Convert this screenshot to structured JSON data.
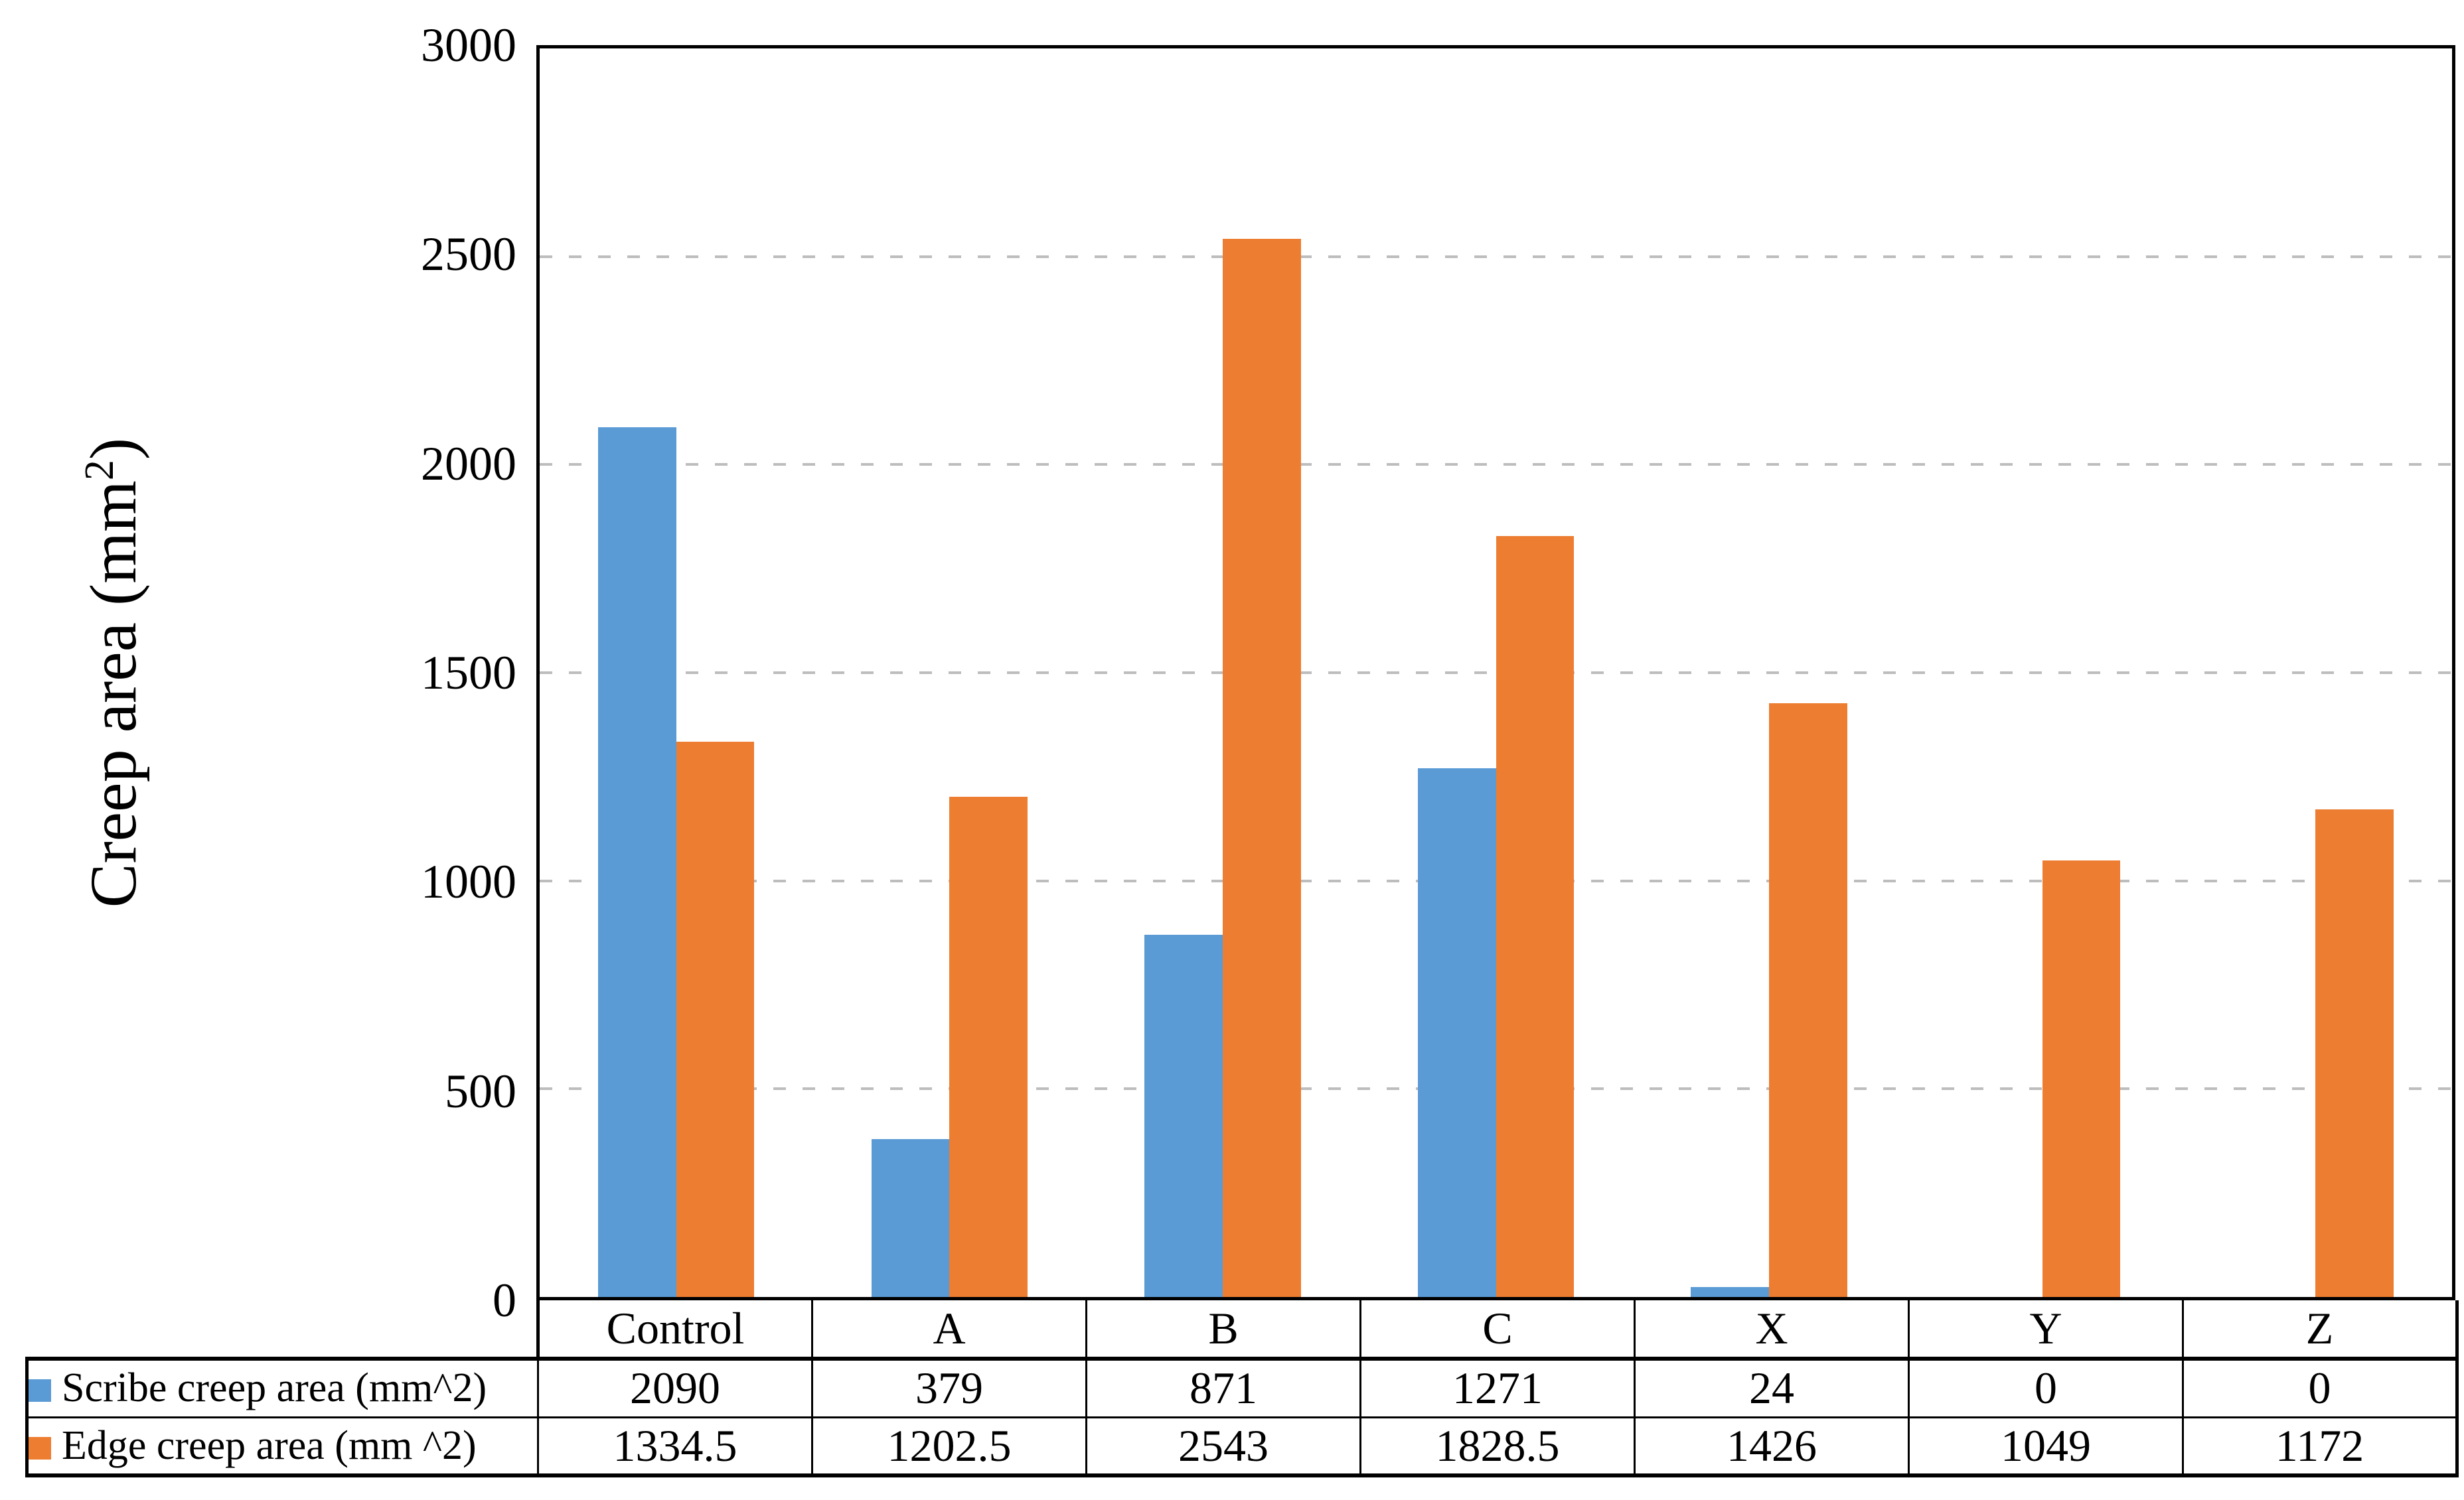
{
  "chart_data": {
    "type": "bar",
    "categories": [
      "Control",
      "A",
      "B",
      "C",
      "X",
      "Y",
      "Z"
    ],
    "series": [
      {
        "name": "Scribe creep area (mm^2)",
        "color": "#5B9BD5",
        "values": [
          2090,
          379,
          871,
          1271,
          24,
          0,
          0
        ]
      },
      {
        "name": "Edge creep area (mm ^2)",
        "color": "#ED7D31",
        "values": [
          1334.5,
          1202.5,
          2543,
          1828.5,
          1426,
          1049,
          1172
        ]
      }
    ],
    "title": "",
    "xlabel": "",
    "ylabel": "Creep area (mm²)",
    "ylim": [
      0,
      3000
    ],
    "yticks": [
      3000,
      2500,
      2000,
      1500,
      1000,
      500,
      0
    ],
    "grid": "horizontal-dashed",
    "gridline_color": "#bdbdbd",
    "axis_color": "#000000",
    "legend_position": "table-rows-left-of-data-table"
  },
  "y_axis_title": {
    "prefix": "Creep area (mm",
    "sup": "2",
    "suffix": ")"
  }
}
